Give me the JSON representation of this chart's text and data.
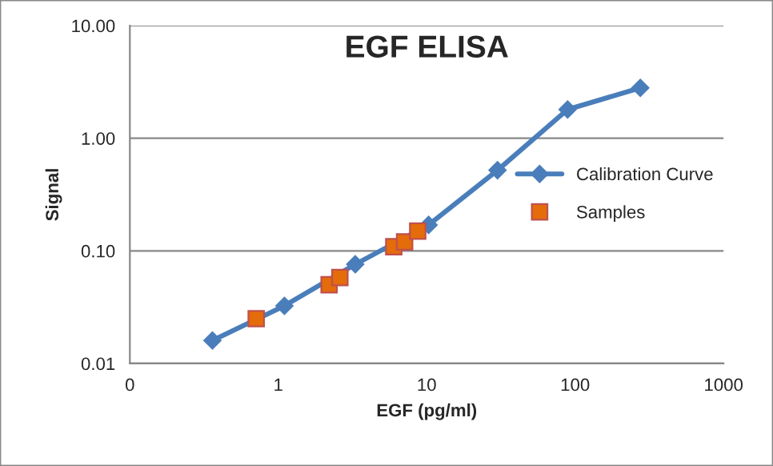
{
  "chart_data": {
    "type": "line",
    "title": "EGF ELISA",
    "xlabel": "EGF (pg/ml)",
    "ylabel": "Signal",
    "log": "xy",
    "grid": "y",
    "legend": "right",
    "xlim": [
      0.1,
      1000
    ],
    "xticks": [
      {
        "value": 0.1,
        "label": "0"
      },
      1,
      10,
      100,
      1000
    ],
    "ylim": [
      0.01,
      10
    ],
    "yticks": [
      {
        "value": 0.01,
        "label": "0.01"
      },
      {
        "value": 0.1,
        "label": "0.10"
      },
      {
        "value": 1,
        "label": "1.00"
      },
      {
        "value": 10,
        "label": "10.00"
      }
    ],
    "series": [
      {
        "name": "Calibration Curve",
        "color": "#4a7ebb",
        "marker": "diamond",
        "line_style": "solid",
        "x": [
          0.36,
          1.1,
          3.3,
          10.3,
          30,
          89,
          275
        ],
        "values": [
          0.016,
          0.0325,
          0.076,
          0.17,
          0.52,
          1.8,
          2.8
        ]
      },
      {
        "name": "Samples",
        "type": "scatter",
        "color": "#e46c0a",
        "marker": "square",
        "x": [
          0.71,
          2.2,
          2.6,
          6.0,
          7.1,
          8.7
        ],
        "values": [
          0.025,
          0.05,
          0.058,
          0.109,
          0.12,
          0.15
        ]
      }
    ]
  }
}
